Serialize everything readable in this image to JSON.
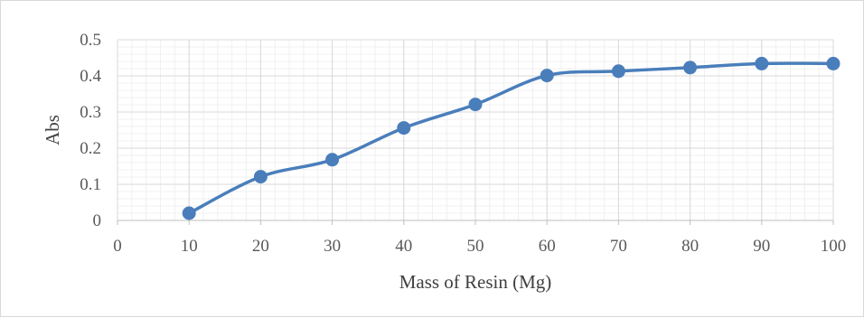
{
  "chart_data": {
    "type": "line",
    "title": "",
    "xlabel": "Mass of Resin (Mg)",
    "ylabel": "Abs",
    "xlim": [
      0,
      100
    ],
    "ylim": [
      0,
      0.5
    ],
    "x_ticks": [
      "0",
      "10",
      "20",
      "30",
      "40",
      "50",
      "60",
      "70",
      "80",
      "90",
      "100"
    ],
    "y_ticks": [
      "0",
      "0.1",
      "0.2",
      "0.3",
      "0.4",
      "0.5"
    ],
    "grid": "major and minor",
    "legend": "none",
    "series": [
      {
        "x": [
          10,
          20,
          30,
          40,
          50,
          60,
          70,
          80,
          90,
          100
        ],
        "y": [
          0.02,
          0.121,
          0.168,
          0.256,
          0.321,
          0.401,
          0.413,
          0.423,
          0.434,
          0.434
        ],
        "color": "#4a7ebb",
        "smooth": true,
        "marker": "circle"
      }
    ]
  }
}
